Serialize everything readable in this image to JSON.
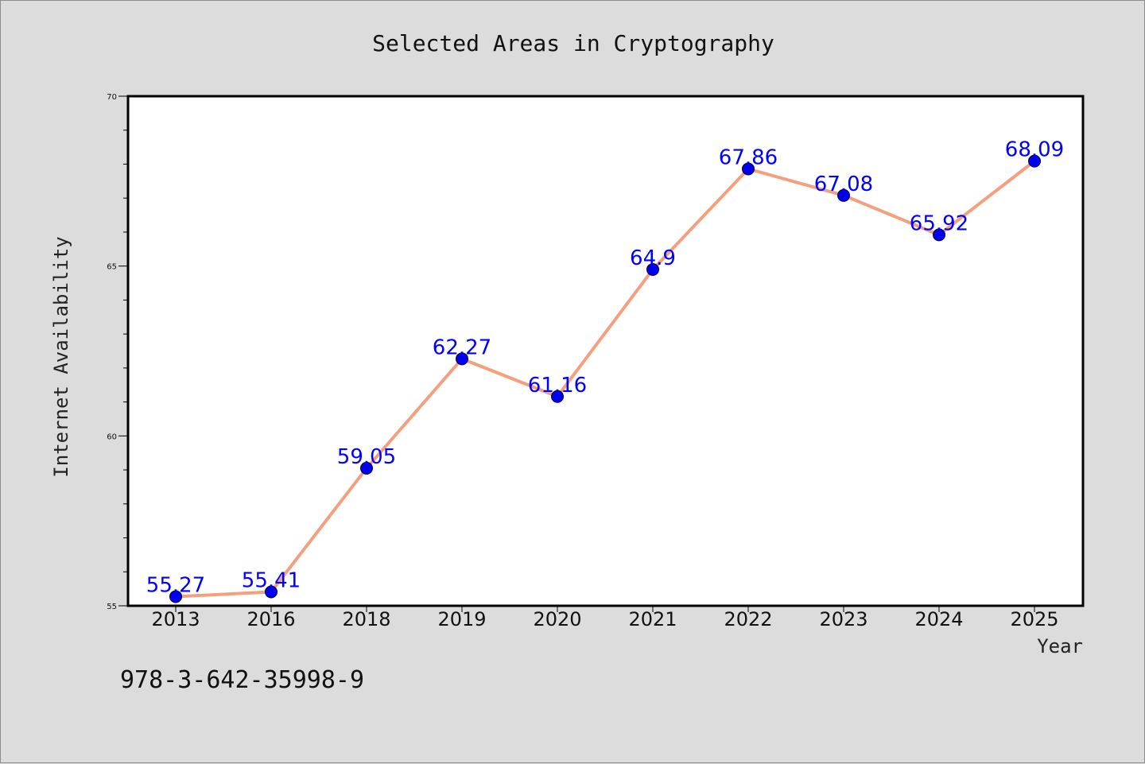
{
  "colors": {
    "background": "#dcdcdc",
    "plot_background": "#ffffff",
    "line": "#f4a07e",
    "marker": "#0000ee",
    "data_label": "#0000ff"
  },
  "footer": {
    "isbn": "978-3-642-35998-9"
  },
  "chart_data": {
    "type": "line",
    "title": "Selected Areas in Cryptography",
    "xlabel": "Year",
    "ylabel": "Internet Availability",
    "categories": [
      "2013",
      "2016",
      "2018",
      "2019",
      "2020",
      "2021",
      "2022",
      "2023",
      "2024",
      "2025"
    ],
    "series": [
      {
        "values": [
          55.27,
          55.41,
          59.05,
          62.27,
          61.16,
          64.9,
          67.86,
          67.08,
          65.92,
          68.09
        ]
      }
    ],
    "data_labels": [
      "55.27",
      "55.41",
      "59.05",
      "62.27",
      "61.16",
      "64.9",
      "67.86",
      "67.08",
      "65.92",
      "68.09"
    ],
    "ylim": [
      55,
      70
    ],
    "yticks": [
      "55",
      "60",
      "65",
      "70"
    ],
    "ymajor_step": 5,
    "yminor_step": 1,
    "grid": false,
    "legend": "none"
  }
}
